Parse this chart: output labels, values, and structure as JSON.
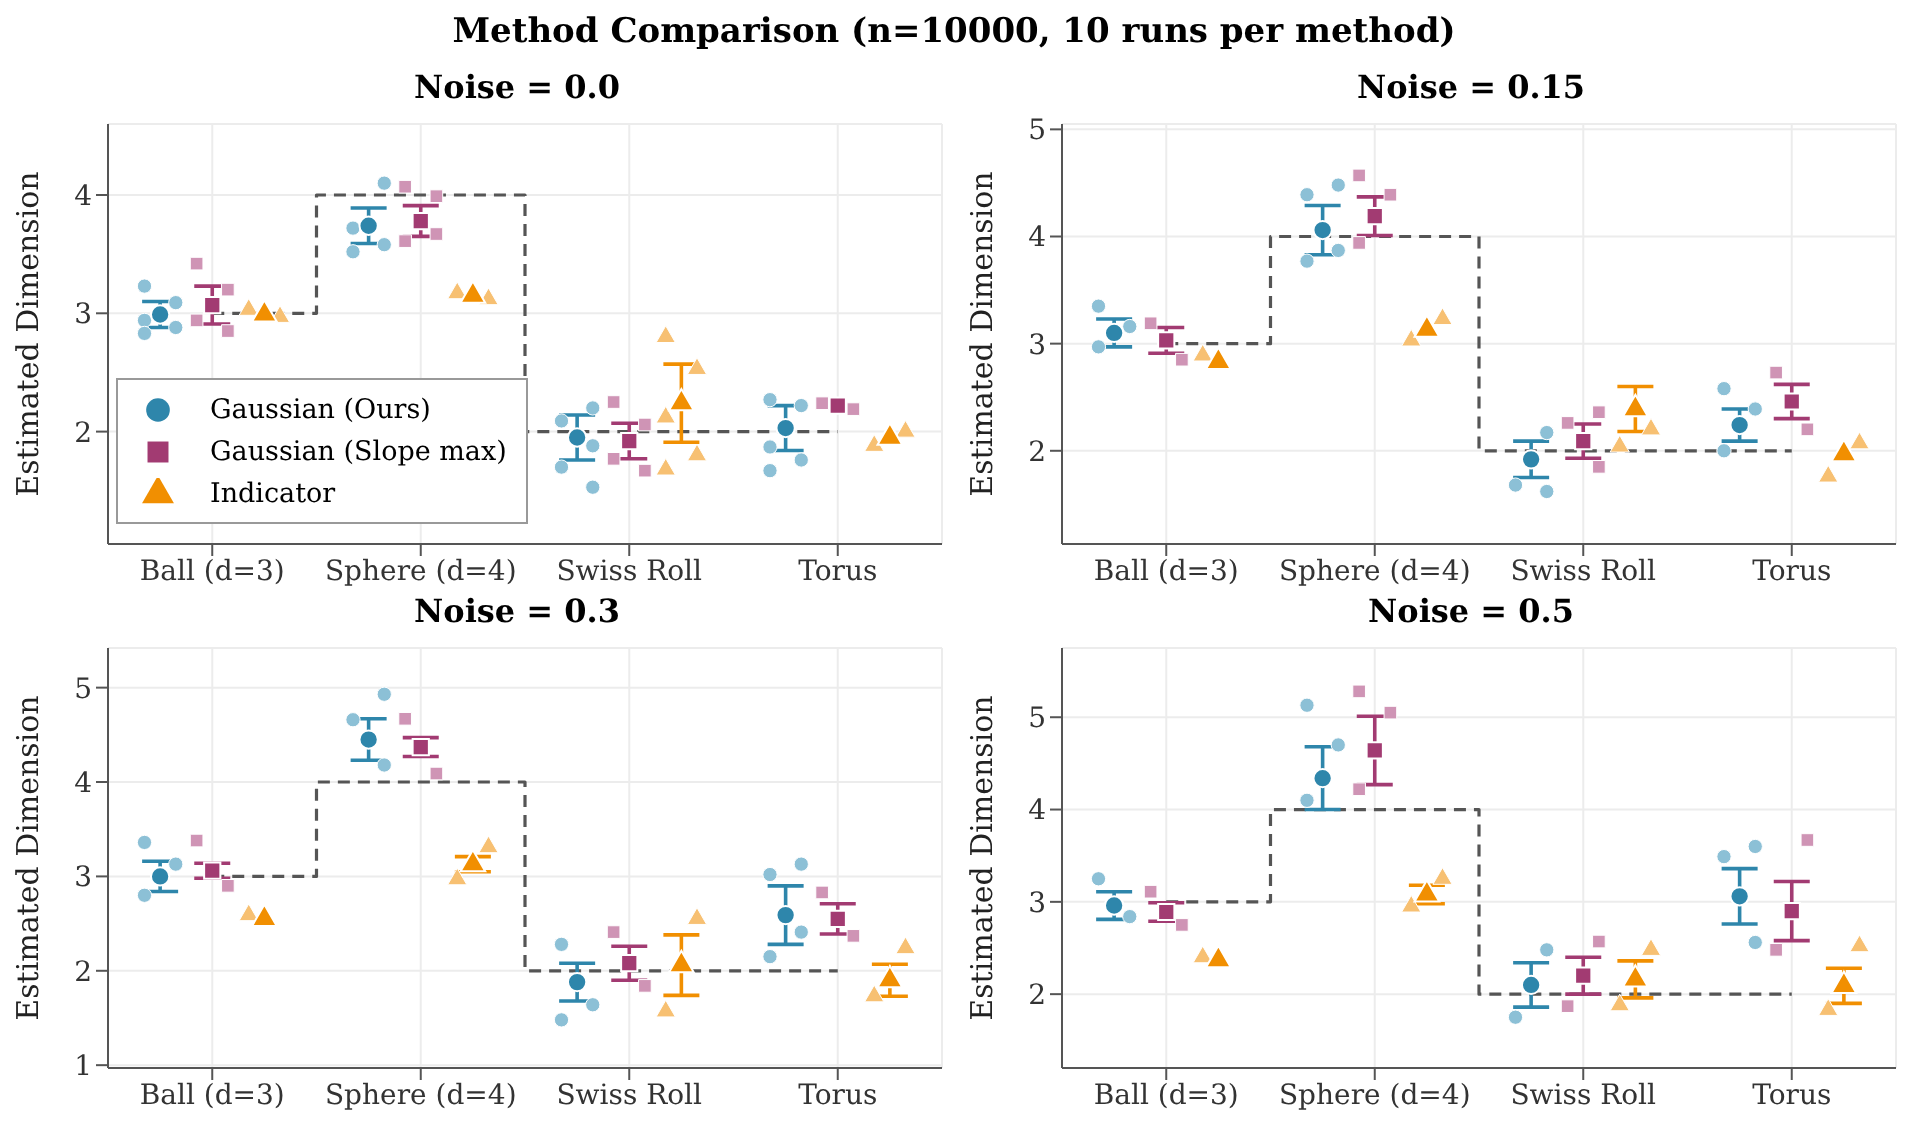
{
  "chart_data": [
    {
      "type": "scatter",
      "title": "Noise = 0.0",
      "ylabel": "Estimated Dimension",
      "annotations": [
        "Method Comparison (n=10000, 10 runs per method)"
      ],
      "categories": [
        "Ball (d=3)",
        "Sphere (d=4)",
        "Swiss Roll",
        "Torus"
      ],
      "ylim": [
        1.05,
        4.6
      ],
      "yticks": [
        2,
        3,
        4
      ],
      "grid": true,
      "legend": "bottom left",
      "series": [
        {
          "name": "Gaussian (Ours)",
          "color": "#2e86ab",
          "marker": "circle",
          "values": [
            2.99,
            3.74,
            1.95,
            2.03
          ],
          "errors": [
            0.11,
            0.15,
            0.19,
            0.19
          ]
        },
        {
          "name": "Gaussian (Slope max)",
          "color": "#a23b72",
          "marker": "square",
          "values": [
            3.07,
            3.78,
            1.92,
            2.22
          ],
          "errors": [
            0.16,
            0.13,
            0.15,
            null
          ]
        },
        {
          "name": "Indicator",
          "color": "#f18f01",
          "marker": "triangle",
          "values": [
            2.99,
            3.15,
            2.24,
            1.95
          ],
          "errors": [
            null,
            null,
            0.33,
            null
          ]
        },
        {
          "color": "#8cc0d6",
          "marker": "circle",
          "x": [
            "Ball (d=3)",
            "Ball (d=3)",
            "Ball (d=3)",
            "Ball (d=3)",
            "Ball (d=3)",
            "Sphere (d=4)",
            "Sphere (d=4)",
            "Sphere (d=4)",
            "Sphere (d=4)",
            "Swiss Roll",
            "Swiss Roll",
            "Swiss Roll",
            "Swiss Roll",
            "Swiss Roll",
            "Torus",
            "Torus",
            "Torus",
            "Torus",
            "Torus"
          ],
          "values": [
            3.23,
            3.09,
            2.94,
            2.88,
            2.83,
            4.1,
            3.72,
            3.58,
            3.52,
            2.2,
            2.09,
            1.88,
            1.7,
            1.53,
            2.27,
            2.22,
            1.87,
            1.76,
            1.67
          ]
        },
        {
          "color": "#cf94b5",
          "marker": "square",
          "x": [
            "Ball (d=3)",
            "Ball (d=3)",
            "Ball (d=3)",
            "Ball (d=3)",
            "Sphere (d=4)",
            "Sphere (d=4)",
            "Sphere (d=4)",
            "Sphere (d=4)",
            "Swiss Roll",
            "Swiss Roll",
            "Swiss Roll",
            "Swiss Roll",
            "Torus",
            "Torus"
          ],
          "values": [
            3.42,
            3.2,
            2.94,
            2.85,
            4.07,
            3.99,
            3.61,
            3.67,
            2.25,
            2.06,
            1.77,
            1.67,
            2.24,
            2.19
          ]
        },
        {
          "color": "#f7c072",
          "marker": "triangle",
          "x": [
            "Ball (d=3)",
            "Ball (d=3)",
            "Sphere (d=4)",
            "Sphere (d=4)",
            "Swiss Roll",
            "Swiss Roll",
            "Swiss Roll",
            "Swiss Roll",
            "Swiss Roll",
            "Torus",
            "Torus"
          ],
          "values": [
            3.03,
            2.97,
            3.17,
            3.12,
            2.8,
            2.53,
            2.12,
            1.8,
            1.68,
            2.0,
            1.88
          ]
        },
        {
          "type": "step",
          "color": "#555555",
          "line_style": "dashed",
          "values": [
            3,
            4,
            2,
            2
          ]
        }
      ]
    },
    {
      "type": "scatter",
      "title": "Noise = 0.15",
      "ylabel": "Estimated Dimension",
      "categories": [
        "Ball (d=3)",
        "Sphere (d=4)",
        "Swiss Roll",
        "Torus"
      ],
      "ylim": [
        1.13,
        5.05
      ],
      "yticks": [
        2,
        3,
        4,
        5
      ],
      "grid": true,
      "series": [
        {
          "color": "#2e86ab",
          "marker": "circle",
          "values": [
            3.1,
            4.06,
            1.92,
            2.24
          ],
          "errors": [
            0.13,
            0.23,
            0.17,
            0.15
          ]
        },
        {
          "color": "#a23b72",
          "marker": "square",
          "values": [
            3.03,
            4.19,
            2.09,
            2.46
          ],
          "errors": [
            0.12,
            0.18,
            0.16,
            0.16
          ]
        },
        {
          "color": "#f18f01",
          "marker": "triangle",
          "values": [
            2.83,
            3.13,
            2.39,
            1.97
          ],
          "errors": [
            null,
            null,
            0.21,
            null
          ]
        },
        {
          "color": "#8cc0d6",
          "marker": "circle",
          "x": [
            "Ball (d=3)",
            "Ball (d=3)",
            "Ball (d=3)",
            "Sphere (d=4)",
            "Sphere (d=4)",
            "Sphere (d=4)",
            "Sphere (d=4)",
            "Swiss Roll",
            "Swiss Roll",
            "Swiss Roll",
            "Torus",
            "Torus",
            "Torus"
          ],
          "values": [
            3.35,
            3.16,
            2.97,
            4.48,
            4.39,
            3.87,
            3.77,
            2.17,
            1.68,
            1.62,
            2.58,
            2.39,
            2.0
          ]
        },
        {
          "color": "#cf94b5",
          "marker": "square",
          "x": [
            "Ball (d=3)",
            "Ball (d=3)",
            "Sphere (d=4)",
            "Sphere (d=4)",
            "Sphere (d=4)",
            "Swiss Roll",
            "Swiss Roll",
            "Swiss Roll",
            "Torus",
            "Torus"
          ],
          "values": [
            3.19,
            2.85,
            4.57,
            4.39,
            3.94,
            2.36,
            2.26,
            1.85,
            2.73,
            2.2
          ]
        },
        {
          "color": "#f7c072",
          "marker": "triangle",
          "x": [
            "Ball (d=3)",
            "Sphere (d=4)",
            "Sphere (d=4)",
            "Swiss Roll",
            "Swiss Roll",
            "Torus",
            "Torus"
          ],
          "values": [
            2.89,
            3.23,
            3.03,
            2.2,
            2.04,
            2.07,
            1.76
          ]
        },
        {
          "type": "step",
          "color": "#555555",
          "line_style": "dashed",
          "values": [
            3,
            4,
            2,
            2
          ]
        }
      ]
    },
    {
      "type": "scatter",
      "title": "Noise = 0.3",
      "ylabel": "Estimated Dimension",
      "categories": [
        "Ball (d=3)",
        "Sphere (d=4)",
        "Swiss Roll",
        "Torus"
      ],
      "ylim": [
        0.97,
        5.42
      ],
      "yticks": [
        1,
        2,
        3,
        4,
        5
      ],
      "grid": true,
      "series": [
        {
          "color": "#2e86ab",
          "marker": "circle",
          "values": [
            3.0,
            4.45,
            1.88,
            2.59
          ],
          "errors": [
            0.16,
            0.22,
            0.2,
            0.31
          ]
        },
        {
          "color": "#a23b72",
          "marker": "square",
          "values": [
            3.06,
            4.37,
            2.08,
            2.55
          ],
          "errors": [
            0.08,
            0.1,
            0.18,
            0.16
          ]
        },
        {
          "color": "#f18f01",
          "marker": "triangle",
          "values": [
            2.55,
            3.13,
            2.06,
            1.9
          ],
          "errors": [
            null,
            0.08,
            0.32,
            0.17
          ]
        },
        {
          "color": "#8cc0d6",
          "marker": "circle",
          "x": [
            "Ball (d=3)",
            "Ball (d=3)",
            "Ball (d=3)",
            "Sphere (d=4)",
            "Sphere (d=4)",
            "Sphere (d=4)",
            "Swiss Roll",
            "Swiss Roll",
            "Swiss Roll",
            "Torus",
            "Torus",
            "Torus",
            "Torus"
          ],
          "values": [
            3.36,
            3.13,
            2.8,
            4.93,
            4.66,
            4.18,
            2.28,
            1.64,
            1.48,
            3.13,
            3.02,
            2.41,
            2.15
          ]
        },
        {
          "color": "#cf94b5",
          "marker": "square",
          "x": [
            "Ball (d=3)",
            "Ball (d=3)",
            "Sphere (d=4)",
            "Sphere (d=4)",
            "Swiss Roll",
            "Swiss Roll",
            "Torus",
            "Torus"
          ],
          "values": [
            3.38,
            2.9,
            4.67,
            4.09,
            2.41,
            1.84,
            2.83,
            2.37
          ]
        },
        {
          "color": "#f7c072",
          "marker": "triangle",
          "x": [
            "Ball (d=3)",
            "Sphere (d=4)",
            "Sphere (d=4)",
            "Swiss Roll",
            "Swiss Roll",
            "Torus",
            "Torus"
          ],
          "values": [
            2.59,
            3.31,
            2.97,
            2.55,
            1.57,
            2.24,
            1.73
          ]
        },
        {
          "type": "step",
          "color": "#555555",
          "line_style": "dashed",
          "values": [
            3,
            4,
            2,
            2
          ]
        }
      ]
    },
    {
      "type": "scatter",
      "title": "Noise = 0.5",
      "ylabel": "Estimated Dimension",
      "categories": [
        "Ball (d=3)",
        "Sphere (d=4)",
        "Swiss Roll",
        "Torus"
      ],
      "ylim": [
        1.2,
        5.75
      ],
      "yticks": [
        2,
        3,
        4,
        5
      ],
      "grid": true,
      "series": [
        {
          "color": "#2e86ab",
          "marker": "circle",
          "values": [
            2.96,
            4.34,
            2.1,
            3.06
          ],
          "errors": [
            0.15,
            0.34,
            0.24,
            0.3
          ]
        },
        {
          "color": "#a23b72",
          "marker": "square",
          "values": [
            2.89,
            4.64,
            2.2,
            2.9
          ],
          "errors": [
            0.1,
            0.37,
            0.2,
            0.32
          ]
        },
        {
          "color": "#f18f01",
          "marker": "triangle",
          "values": [
            2.37,
            3.08,
            2.16,
            2.09
          ],
          "errors": [
            null,
            0.1,
            0.2,
            0.19
          ]
        },
        {
          "color": "#8cc0d6",
          "marker": "circle",
          "x": [
            "Ball (d=3)",
            "Ball (d=3)",
            "Sphere (d=4)",
            "Sphere (d=4)",
            "Sphere (d=4)",
            "Swiss Roll",
            "Swiss Roll",
            "Torus",
            "Torus",
            "Torus"
          ],
          "values": [
            3.25,
            2.84,
            5.13,
            4.7,
            4.1,
            2.48,
            1.75,
            3.6,
            3.49,
            2.56
          ]
        },
        {
          "color": "#cf94b5",
          "marker": "square",
          "x": [
            "Ball (d=3)",
            "Ball (d=3)",
            "Sphere (d=4)",
            "Sphere (d=4)",
            "Sphere (d=4)",
            "Swiss Roll",
            "Swiss Roll",
            "Torus",
            "Torus"
          ],
          "values": [
            3.11,
            2.75,
            5.28,
            5.05,
            4.22,
            2.57,
            1.87,
            3.67,
            2.48
          ]
        },
        {
          "color": "#f7c072",
          "marker": "triangle",
          "x": [
            "Ball (d=3)",
            "Sphere (d=4)",
            "Sphere (d=4)",
            "Swiss Roll",
            "Swiss Roll",
            "Torus",
            "Torus"
          ],
          "values": [
            2.4,
            3.25,
            2.95,
            2.48,
            1.88,
            2.52,
            1.83
          ]
        },
        {
          "type": "step",
          "color": "#555555",
          "line_style": "dashed",
          "values": [
            3,
            4,
            2,
            2
          ]
        }
      ]
    }
  ]
}
